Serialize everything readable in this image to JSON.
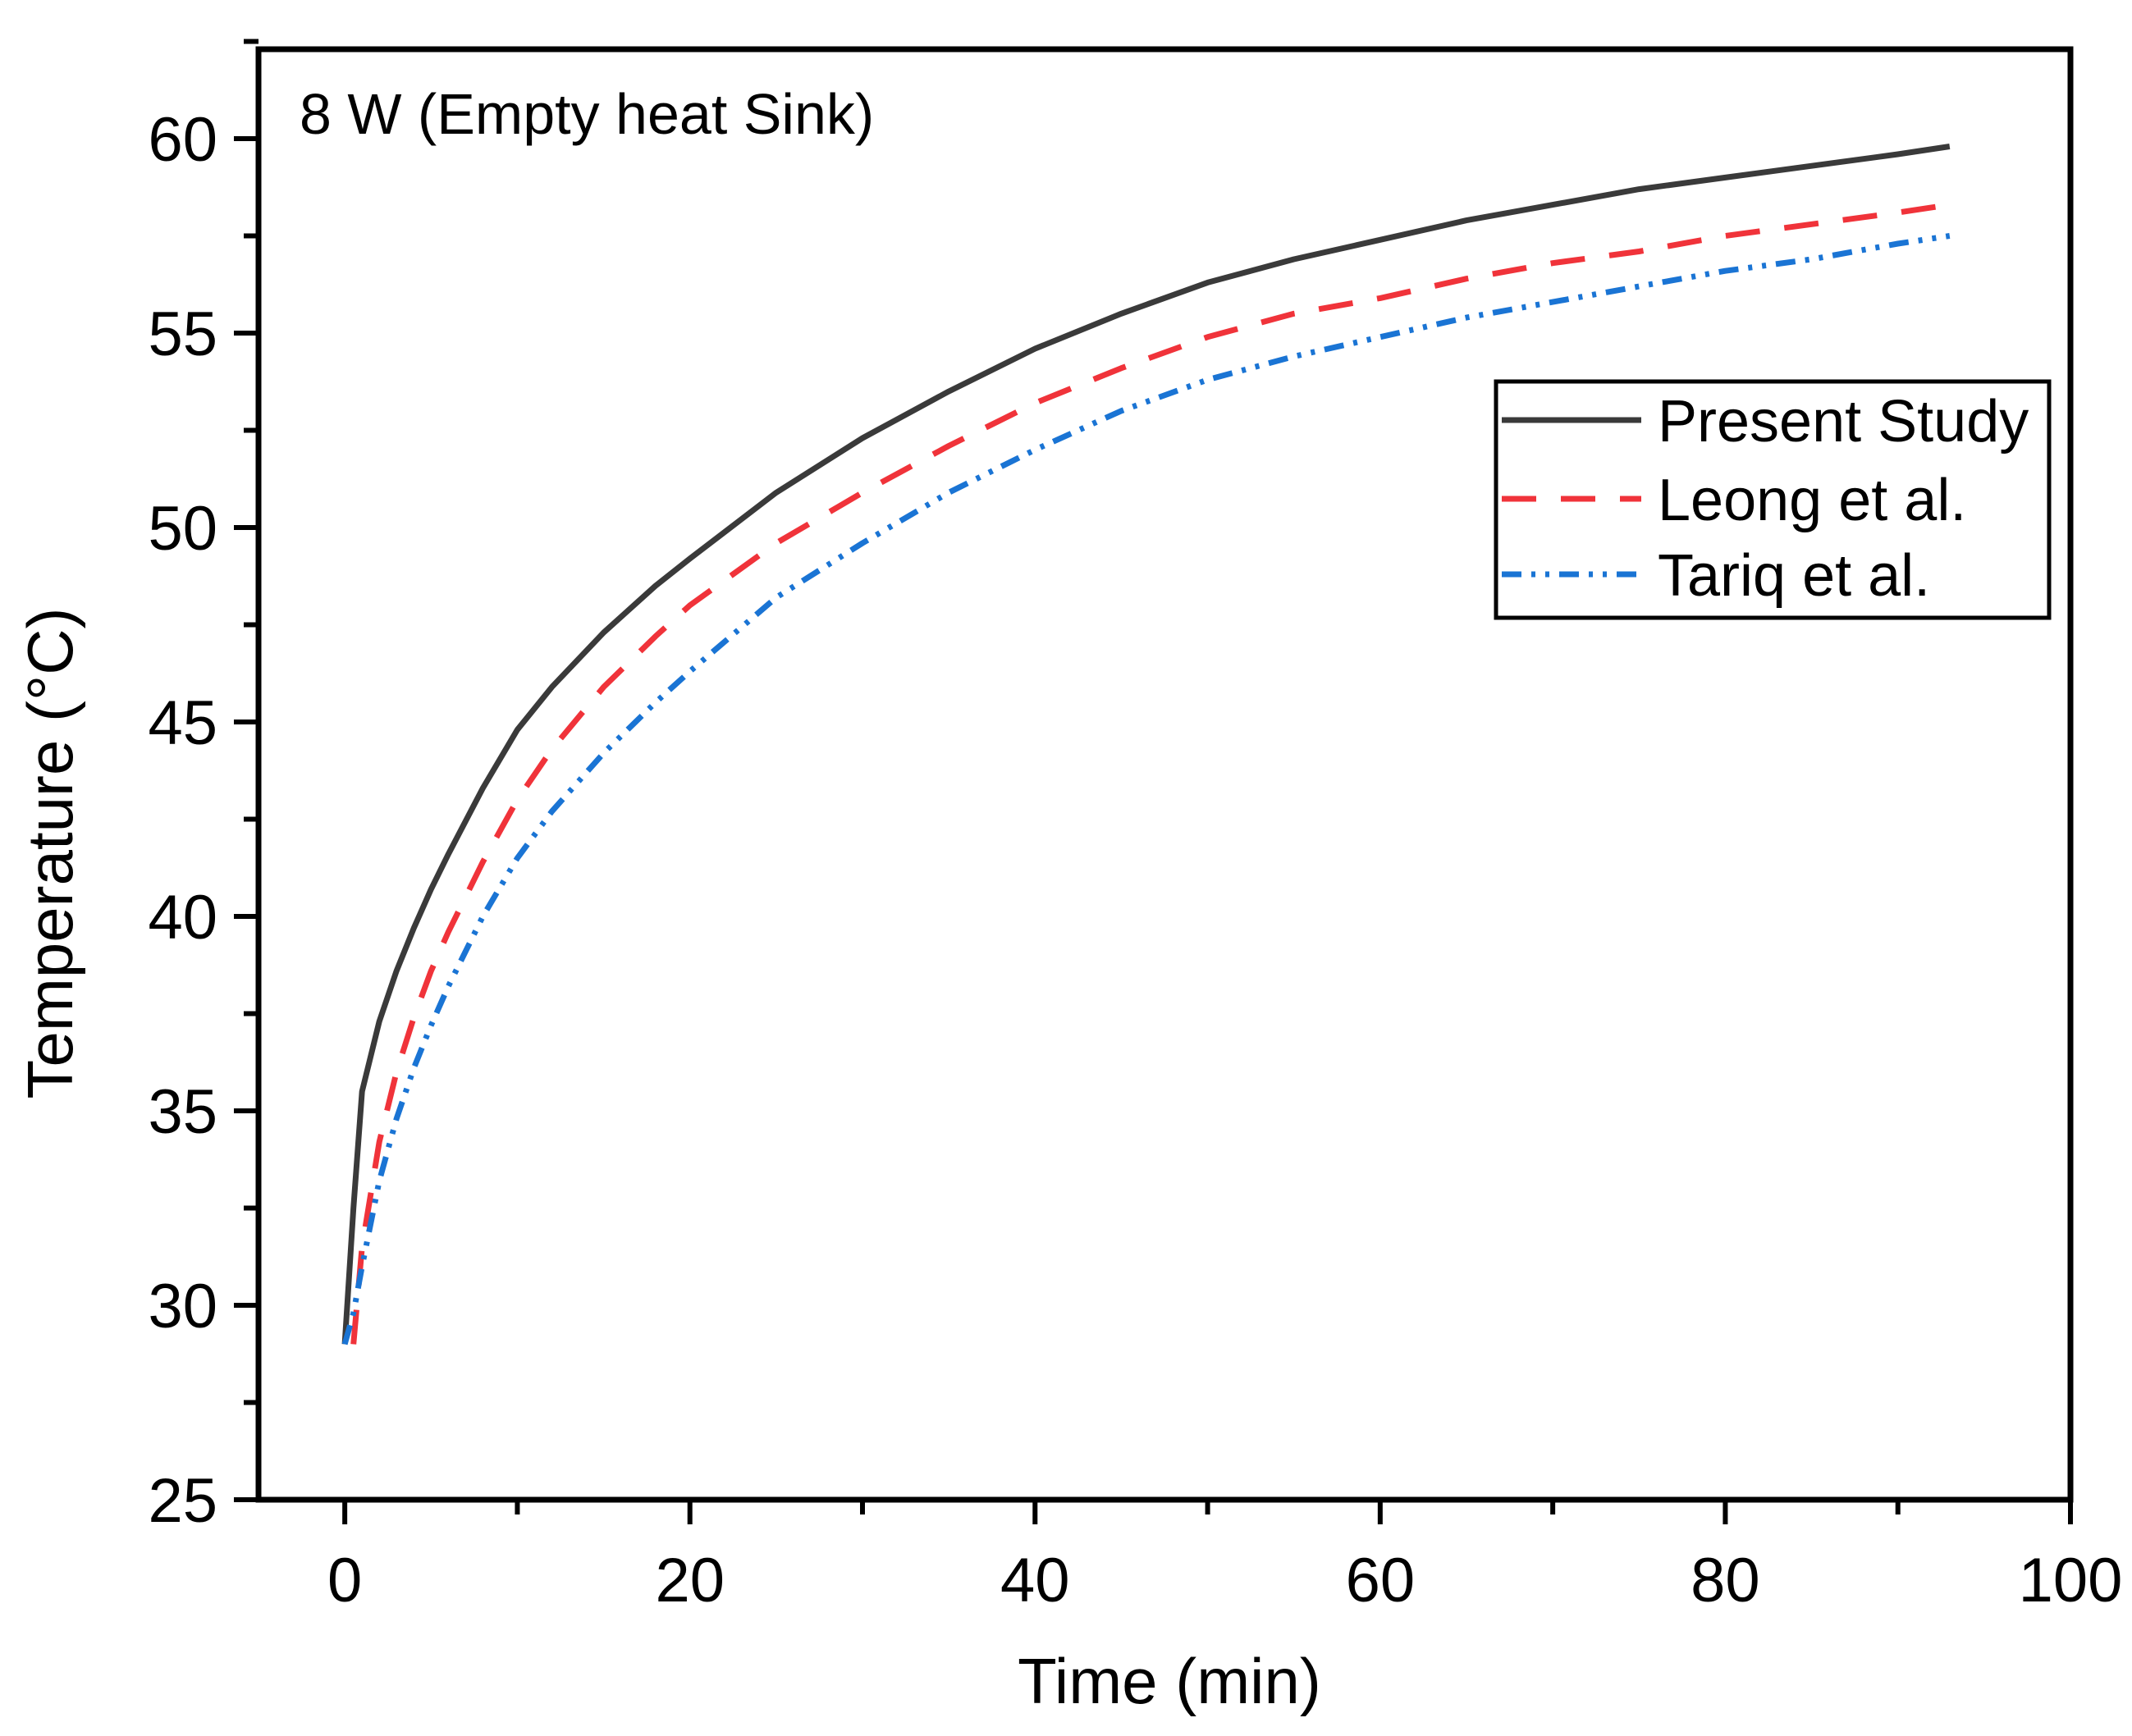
{
  "chart_data": {
    "type": "line",
    "annotation": "8 W (Empty heat Sink)",
    "xlabel": "Time (min)",
    "ylabel": "Temperature (°C)",
    "xlim": [
      -5,
      100
    ],
    "ylim": [
      25,
      62.3
    ],
    "xticks": [
      0,
      20,
      40,
      60,
      80,
      100
    ],
    "yticks": [
      25,
      30,
      35,
      40,
      45,
      50,
      55,
      60
    ],
    "grid": false,
    "legend_position": "upper-right",
    "series": [
      {
        "name": "Present Study",
        "color": "#3a3a3a",
        "style": "solid",
        "x": [
          0,
          0.5,
          1,
          2,
          3,
          4,
          5,
          6,
          8,
          10,
          12,
          15,
          18,
          20,
          25,
          30,
          35,
          40,
          45,
          50,
          55,
          60,
          65,
          70,
          75,
          80,
          85,
          90,
          93
        ],
        "y": [
          29,
          32.5,
          35.5,
          37.3,
          38.6,
          39.7,
          40.7,
          41.6,
          43.3,
          44.8,
          45.9,
          47.3,
          48.5,
          49.2,
          50.9,
          52.3,
          53.5,
          54.6,
          55.5,
          56.3,
          56.9,
          57.4,
          57.9,
          58.3,
          58.7,
          59,
          59.3,
          59.6,
          59.8
        ]
      },
      {
        "name": "Leong et al.",
        "color": "#f0333a",
        "style": "dashed",
        "x": [
          0.5,
          1,
          2,
          3,
          4,
          5,
          6,
          8,
          10,
          12,
          15,
          18,
          20,
          25,
          30,
          35,
          40,
          45,
          50,
          55,
          60,
          65,
          70,
          75,
          80,
          85,
          90,
          93
        ],
        "y": [
          29,
          31.5,
          34.2,
          36,
          37.4,
          38.6,
          39.6,
          41.4,
          43,
          44.3,
          45.9,
          47.2,
          48,
          49.6,
          50.9,
          52.1,
          53.2,
          54.1,
          54.9,
          55.5,
          55.9,
          56.4,
          56.8,
          57.1,
          57.5,
          57.8,
          58.1,
          58.3
        ]
      },
      {
        "name": "Tariq et al.",
        "color": "#1a74d4",
        "style": "dash-dot-dot",
        "x": [
          0,
          0.5,
          1,
          2,
          3,
          4,
          5,
          6,
          8,
          10,
          12,
          15,
          18,
          20,
          25,
          30,
          35,
          40,
          45,
          50,
          55,
          60,
          65,
          70,
          75,
          80,
          85,
          90,
          93
        ],
        "y": [
          29,
          29.8,
          31,
          33.2,
          34.8,
          36.1,
          37.2,
          38.2,
          40,
          41.5,
          42.7,
          44.2,
          45.5,
          46.3,
          48.2,
          49.6,
          50.9,
          52,
          53,
          53.8,
          54.4,
          54.9,
          55.4,
          55.8,
          56.2,
          56.6,
          56.9,
          57.3,
          57.5
        ]
      }
    ]
  }
}
